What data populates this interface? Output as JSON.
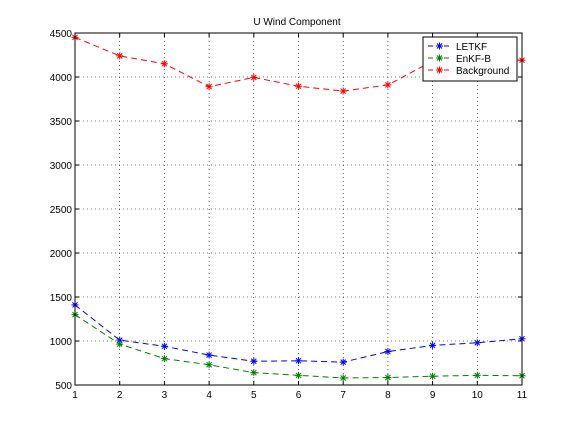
{
  "chart_data": {
    "type": "line",
    "title": "U Wind Component",
    "xlabel": "",
    "ylabel": "",
    "x": [
      1,
      2,
      3,
      4,
      5,
      6,
      7,
      8,
      9,
      10,
      11
    ],
    "xlim": [
      1,
      11
    ],
    "ylim": [
      500,
      4500
    ],
    "xticks": [
      1,
      2,
      3,
      4,
      5,
      6,
      7,
      8,
      9,
      10,
      11
    ],
    "yticks": [
      500,
      1000,
      1500,
      2000,
      2500,
      3000,
      3500,
      4000,
      4500
    ],
    "grid": true,
    "legend_position": "top-right",
    "series": [
      {
        "name": "LETKF",
        "color": "#0000ff",
        "line_style": "dashed",
        "marker": "asterisk",
        "values": [
          1410,
          1010,
          940,
          840,
          770,
          775,
          760,
          880,
          950,
          980,
          1025
        ]
      },
      {
        "name": "EnKF-B",
        "color": "#008000",
        "line_style": "dashed",
        "marker": "asterisk",
        "values": [
          1300,
          965,
          800,
          730,
          640,
          610,
          580,
          585,
          600,
          610,
          605
        ]
      },
      {
        "name": "Background",
        "color": "#ff0000",
        "line_style": "dashed",
        "marker": "asterisk",
        "values": [
          4450,
          4240,
          4150,
          3890,
          3995,
          3895,
          3840,
          3910,
          4180,
          4220,
          4190
        ]
      }
    ]
  }
}
